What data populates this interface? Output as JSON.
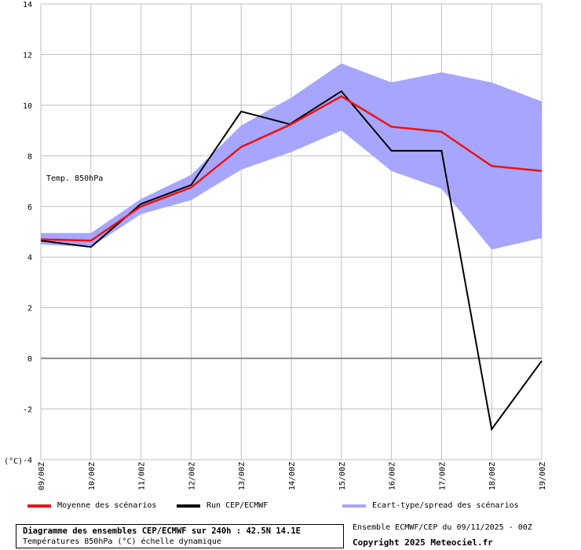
{
  "chart_data": {
    "type": "line",
    "annotation": "Temp. 850hPa",
    "ylabel": "(°C)",
    "ylim": [
      -4,
      14
    ],
    "yticks": [
      14,
      12,
      10,
      8,
      6,
      4,
      2,
      0,
      -2,
      -4
    ],
    "ytick_labels": [
      "14",
      "12",
      "10",
      "8",
      "6",
      "4",
      "2",
      "0",
      "-2",
      "-4"
    ],
    "categories": [
      "09/00Z",
      "10/00Z",
      "11/00Z",
      "12/00Z",
      "13/00Z",
      "14/00Z",
      "15/00Z",
      "16/00Z",
      "17/00Z",
      "18/00Z",
      "19/00Z"
    ],
    "grid": true,
    "series": [
      {
        "name": "Moyenne des scénarios",
        "color": "#ee1111",
        "x": [
          0,
          1,
          2,
          3,
          4,
          5,
          6,
          7,
          8,
          9,
          10
        ],
        "values": [
          4.7,
          4.65,
          6.0,
          6.75,
          8.35,
          9.25,
          10.35,
          9.15,
          8.95,
          7.6,
          7.4
        ]
      },
      {
        "name": "Run CEP/ECMWF",
        "color": "#000000",
        "x": [
          0,
          1,
          2,
          3,
          4,
          4.97,
          6,
          7,
          7.5,
          8,
          9,
          10
        ],
        "values": [
          4.65,
          4.4,
          6.1,
          6.85,
          9.75,
          9.25,
          10.55,
          8.2,
          8.2,
          8.2,
          -2.8,
          -0.1
        ]
      },
      {
        "name": "Ecart-type/spread des scénarios",
        "color": "#a6a6ff",
        "x": [
          0,
          1,
          2,
          3,
          4,
          5,
          6,
          7,
          8,
          9,
          10
        ],
        "upper": [
          4.95,
          4.95,
          6.3,
          7.25,
          9.2,
          10.3,
          11.65,
          10.9,
          11.3,
          10.9,
          10.15
        ],
        "lower": [
          4.5,
          4.4,
          5.7,
          6.25,
          7.45,
          8.15,
          9.0,
          7.4,
          6.7,
          4.3,
          4.75
        ]
      }
    ]
  },
  "legend": {
    "mean": "Moyenne des scénarios",
    "run": "Run CEP/ECMWF",
    "spread": "Ecart-type/spread des scénarios"
  },
  "footer": {
    "title": "Diagramme des ensembles CEP/ECMWF sur 240h : 42.5N 14.1E",
    "subtitle": "Températures 850hPa (°C) échelle dynamique",
    "ensemble": "Ensemble ECMWF/CEP du 09/11/2025 - 00Z",
    "copyright": "Copyright 2025 Meteociel.fr"
  },
  "colors": {
    "mean": "#ee1111",
    "run": "#000000",
    "spread": "#a6a6ff",
    "grid": "#c0c0c0",
    "zero_line": "#8a8a8a"
  }
}
